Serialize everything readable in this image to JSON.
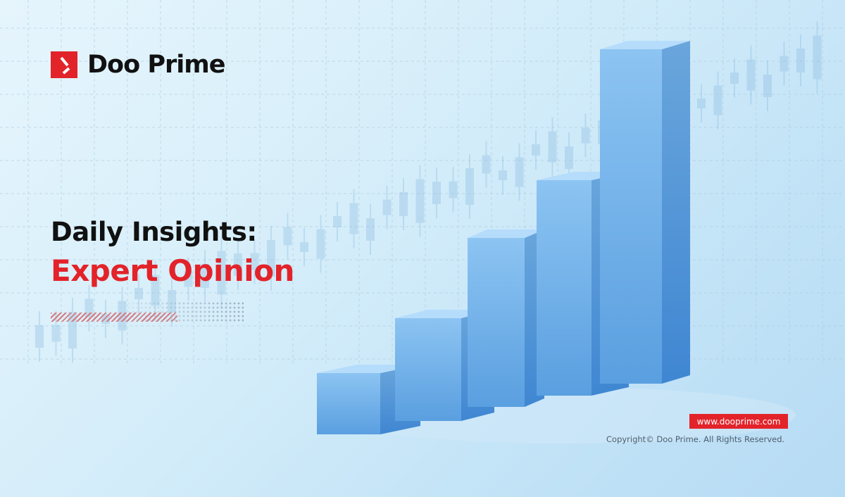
{
  "brand": {
    "name": "Doo Prime",
    "color": "#e3232a"
  },
  "headline": {
    "line1": "Daily Insights:",
    "line2": "Expert Opinion"
  },
  "footer": {
    "website": "www.dooprime.com",
    "copyright": "Copyright© Doo Prime. All Rights Reserved."
  },
  "illustration": {
    "type": "3d-bar-chart-icon",
    "bar_count": 5,
    "bar_color": "#6fb0ea"
  }
}
